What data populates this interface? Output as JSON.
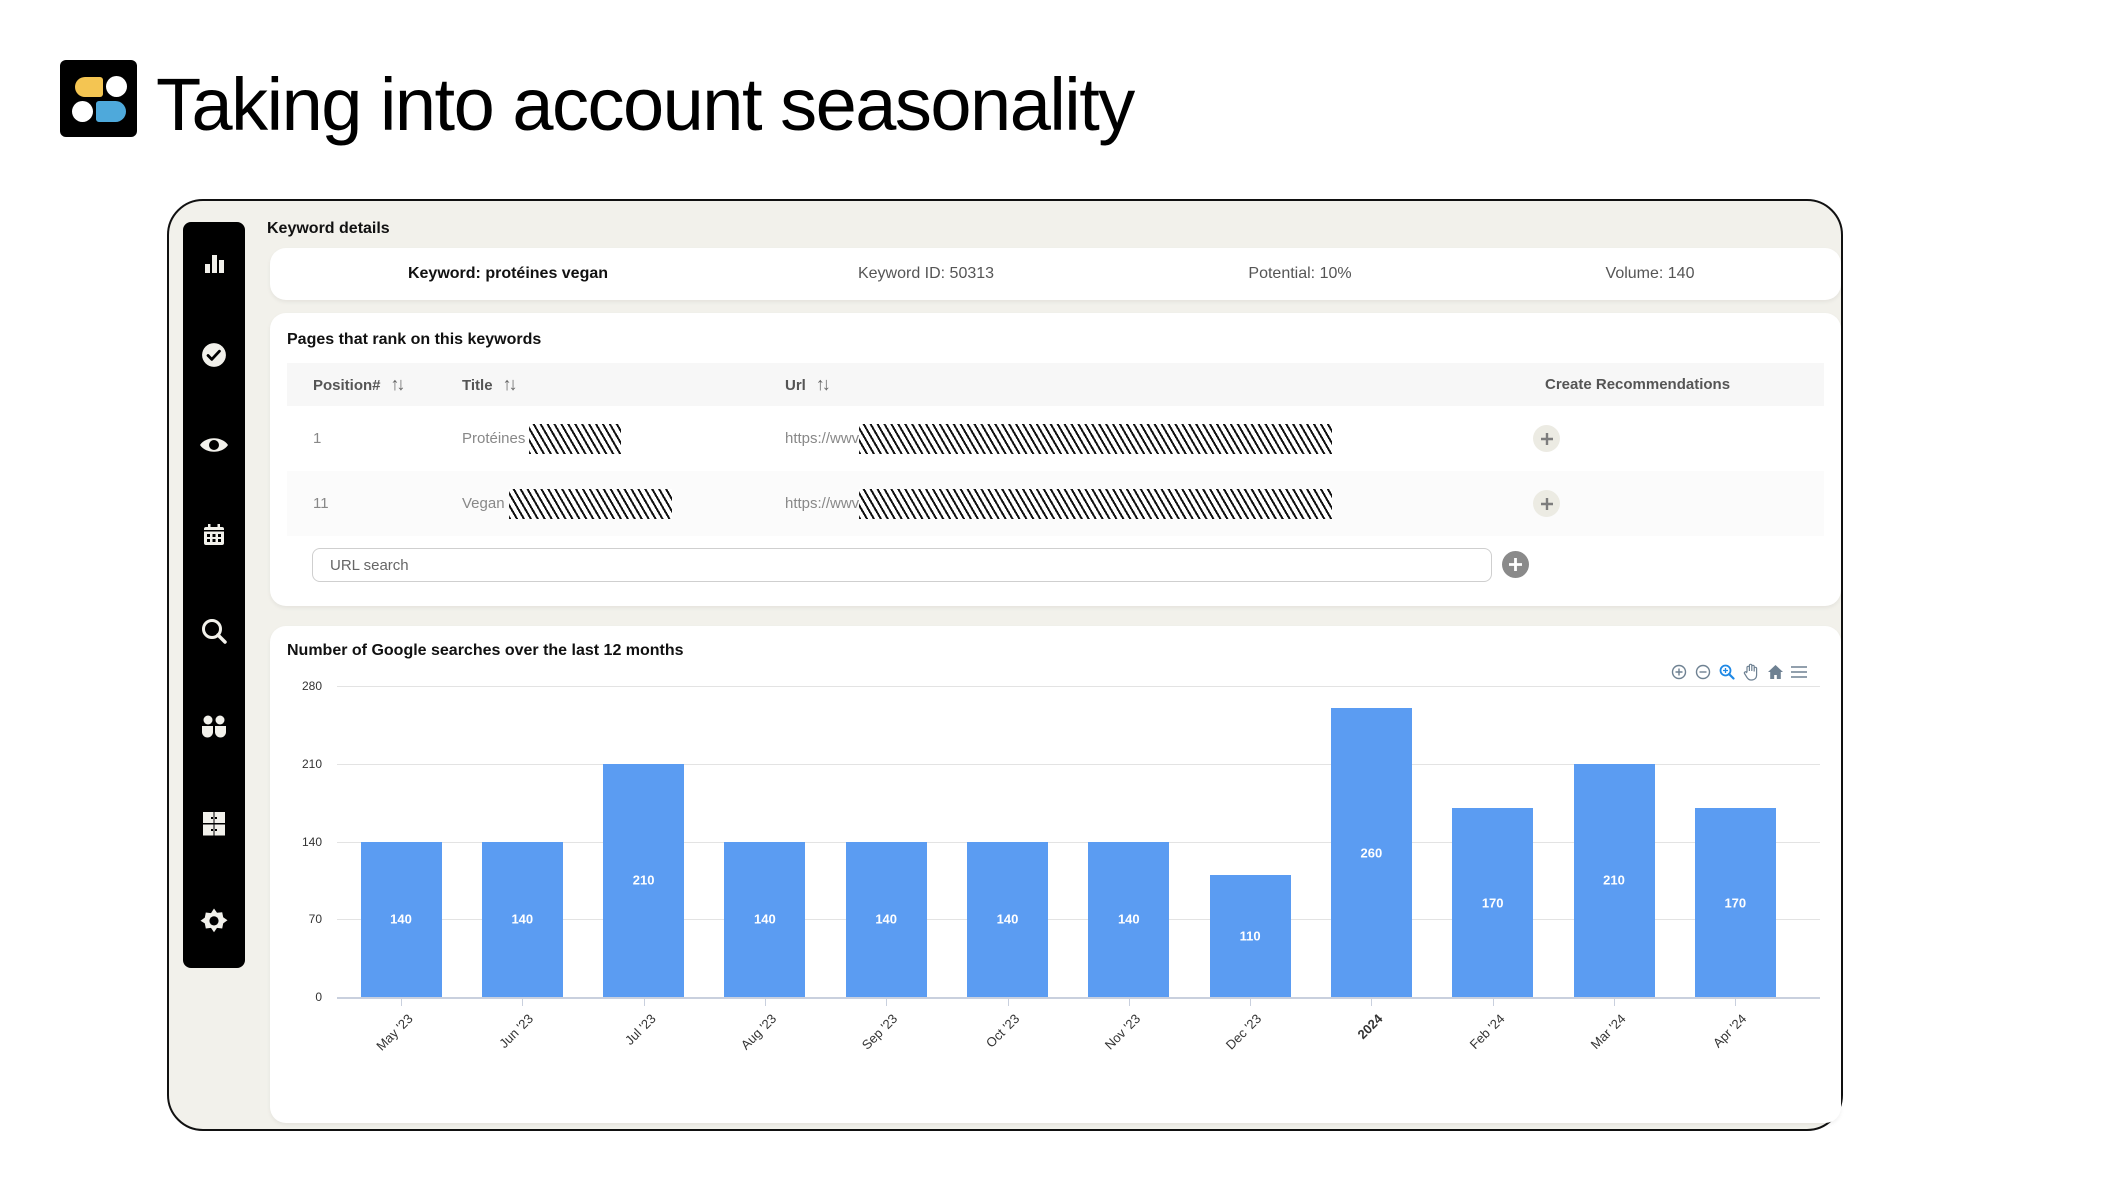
{
  "slide": {
    "title": "Taking into account seasonality"
  },
  "sidebar": {
    "items": [
      {
        "icon": "bar-chart-icon"
      },
      {
        "icon": "check-circle-icon"
      },
      {
        "icon": "eye-icon"
      },
      {
        "icon": "calendar-icon"
      },
      {
        "icon": "search-icon"
      },
      {
        "icon": "users-icon"
      },
      {
        "icon": "grid-icon"
      },
      {
        "icon": "settings-icon"
      }
    ]
  },
  "keyword_details": {
    "section_label": "Keyword details",
    "keyword": "Keyword: protéines vegan",
    "keyword_id": "Keyword ID: 50313",
    "potential": "Potential: 10%",
    "volume": "Volume: 140"
  },
  "pages": {
    "title": "Pages that rank on this keywords",
    "columns": {
      "position": "Position#",
      "title": "Title",
      "url": "Url",
      "create": "Create Recommendations"
    },
    "sort_glyph": "↑↓",
    "rows": [
      {
        "position": "1",
        "title": "Protéines",
        "url": "https://wwv"
      },
      {
        "position": "11",
        "title": "Vegan",
        "url": "https://wwv"
      }
    ],
    "search": {
      "placeholder": "URL search",
      "value": ""
    }
  },
  "chart": {
    "title": "Number of Google searches over the last 12 months",
    "toolbar": [
      "zoom-in-icon",
      "zoom-out-icon",
      "selection-zoom-icon",
      "pan-icon",
      "reset-home-icon",
      "menu-icon"
    ],
    "accent": "#5B9CF2",
    "active_tool_color": "#1E88E5"
  },
  "chart_data": {
    "type": "bar",
    "title": "Number of Google searches over the last 12 months",
    "categories": [
      "May '23",
      "Jun '23",
      "Jul '23",
      "Aug '23",
      "Sep '23",
      "Oct '23",
      "Nov '23",
      "Dec '23",
      "2024",
      "Feb '24",
      "Mar '24",
      "Apr '24"
    ],
    "values": [
      140,
      140,
      210,
      140,
      140,
      140,
      140,
      110,
      260,
      170,
      210,
      170
    ],
    "xlabel": "",
    "ylabel": "",
    "ylim": [
      0,
      280
    ],
    "yticks": [
      0,
      70,
      140,
      210,
      280
    ],
    "grid": true,
    "legend": "none",
    "data_labels": true,
    "bold_categories": [
      "2024"
    ]
  }
}
